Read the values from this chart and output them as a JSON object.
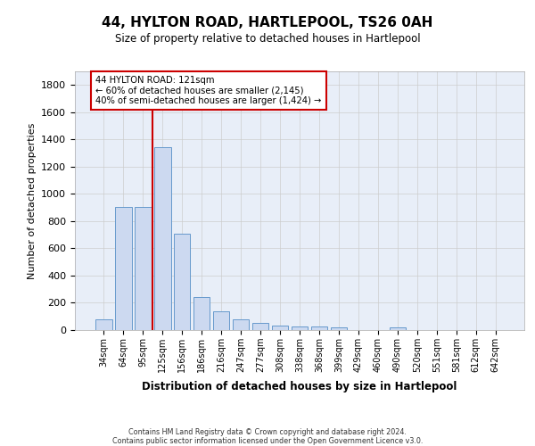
{
  "title": "44, HYLTON ROAD, HARTLEPOOL, TS26 0AH",
  "subtitle": "Size of property relative to detached houses in Hartlepool",
  "xlabel": "Distribution of detached houses by size in Hartlepool",
  "ylabel": "Number of detached properties",
  "categories": [
    "34sqm",
    "64sqm",
    "95sqm",
    "125sqm",
    "156sqm",
    "186sqm",
    "216sqm",
    "247sqm",
    "277sqm",
    "308sqm",
    "338sqm",
    "368sqm",
    "399sqm",
    "429sqm",
    "460sqm",
    "490sqm",
    "520sqm",
    "551sqm",
    "581sqm",
    "612sqm",
    "642sqm"
  ],
  "values": [
    80,
    905,
    905,
    1340,
    705,
    245,
    140,
    80,
    55,
    30,
    25,
    25,
    20,
    0,
    0,
    20,
    0,
    0,
    0,
    0,
    0
  ],
  "bar_color": "#ccd9f0",
  "bar_edge_color": "#6699cc",
  "grid_color": "#cccccc",
  "bg_color": "#ffffff",
  "plot_bg_color": "#e8eef8",
  "vline_x": 2.5,
  "vline_color": "#cc0000",
  "annotation_line1": "44 HYLTON ROAD: 121sqm",
  "annotation_line2": "← 60% of detached houses are smaller (2,145)",
  "annotation_line3": "40% of semi-detached houses are larger (1,424) →",
  "annotation_box_color": "#cc0000",
  "ylim": [
    0,
    1900
  ],
  "yticks": [
    0,
    200,
    400,
    600,
    800,
    1000,
    1200,
    1400,
    1600,
    1800
  ],
  "footer_line1": "Contains HM Land Registry data © Crown copyright and database right 2024.",
  "footer_line2": "Contains public sector information licensed under the Open Government Licence v3.0."
}
